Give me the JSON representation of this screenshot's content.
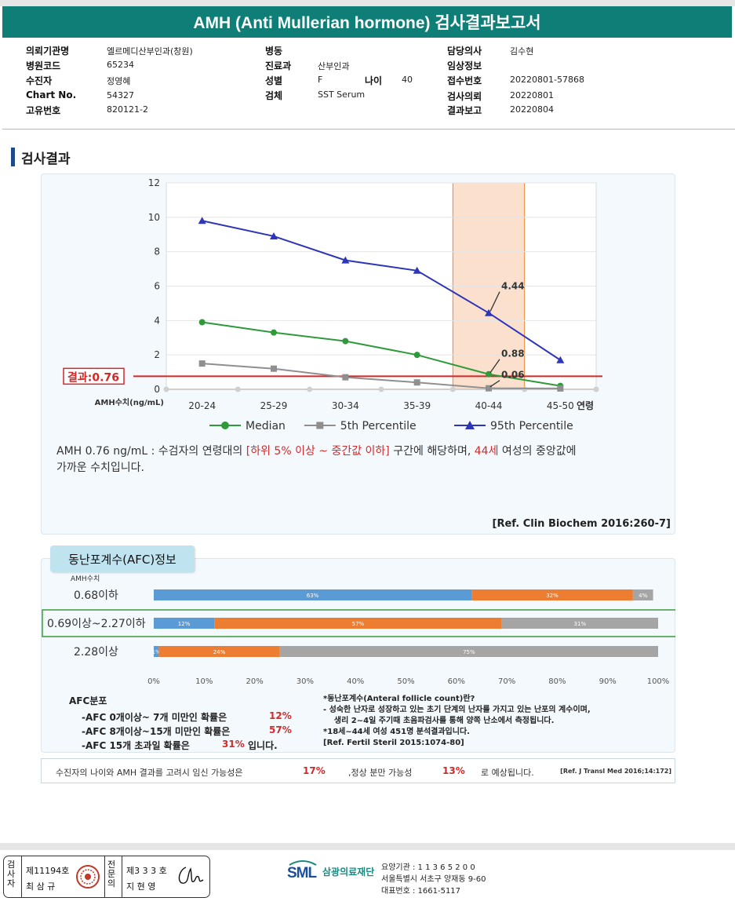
{
  "report": {
    "title": "AMH (Anti Mullerian hormone) 검사결과보고서"
  },
  "patient_info": {
    "col1": [
      {
        "label": "의뢰기관명",
        "value": "엘르메디산부인과(창원)"
      },
      {
        "label": "병원코드",
        "value": "65234"
      },
      {
        "label": "수진자",
        "value": "정영혜"
      },
      {
        "label": "Chart No.",
        "value": "54327"
      },
      {
        "label": "고유번호",
        "value": "820121-2"
      }
    ],
    "col2": [
      {
        "label": "병동",
        "value": ""
      },
      {
        "label": "진료과",
        "value": "산부인과"
      },
      {
        "label": "성별",
        "value": "F"
      },
      {
        "label": "검체",
        "value": "SST Serum"
      }
    ],
    "age_label": "나이",
    "age_value": "40",
    "col3": [
      {
        "label": "담당의사",
        "value": "김수현"
      },
      {
        "label": "임상정보",
        "value": ""
      },
      {
        "label": "접수번호",
        "value": "20220801-57868"
      },
      {
        "label": "검사의뢰",
        "value": "20220801"
      },
      {
        "label": "결과보고",
        "value": "20220804"
      }
    ]
  },
  "section_title": "검사결과",
  "chart_data": {
    "type": "line",
    "categories": [
      "20-24",
      "25-29",
      "30-34",
      "35-39",
      "40-44",
      "45-50"
    ],
    "x_axis_suffix": "연령",
    "y_axis_caption": "AMH수치(ng/mL)",
    "ylim": [
      0,
      12
    ],
    "yticks": [
      0,
      2,
      4,
      6,
      8,
      10,
      12
    ],
    "series": [
      {
        "name": "Median",
        "color": "#2e9a3a",
        "marker": "circle",
        "values": [
          3.9,
          3.3,
          2.8,
          2.0,
          0.88,
          0.2
        ]
      },
      {
        "name": "5th Percentile",
        "color": "#8f8f8f",
        "marker": "square",
        "values": [
          1.5,
          1.2,
          0.7,
          0.4,
          0.06,
          0.05
        ]
      },
      {
        "name": "95th Percentile",
        "color": "#2f35b8",
        "marker": "triangle",
        "values": [
          9.8,
          8.9,
          7.5,
          6.9,
          4.44,
          1.7
        ]
      }
    ],
    "highlight_category": "40-44",
    "highlight_color": "#f4b183",
    "result_line": {
      "value": 0.76,
      "label": "결과:0.76",
      "color": "#d62728"
    },
    "annotations": [
      {
        "text": "4.44",
        "category": "40-44",
        "value": 4.44
      },
      {
        "text": "0.88",
        "category": "40-44",
        "value": 0.88
      },
      {
        "text": "0.06",
        "category": "40-44",
        "value": 0.06
      }
    ],
    "grid": "horizontal",
    "legend_position": "bottom"
  },
  "interpretation": {
    "p1": "AMH  0.76 ng/mL : 수검자의 연령대의 ",
    "p2": "[하위 5% 이상 ~ 중간값 이하]",
    "p3": "  구간에 해당하며, ",
    "p4": "44세",
    "p5": " 여성의 중앙값에",
    "p6": "가까운 수치입니다."
  },
  "ref1": "[Ref. Clin Biochem 2016:260-7]",
  "afc": {
    "title": "동난포계수(AFC)정보",
    "caption": "AMH수치",
    "rows": [
      {
        "label": "0.68이하",
        "segments": [
          63,
          32,
          4
        ],
        "labels": [
          "63%",
          "32%",
          "4%"
        ],
        "highlight": false
      },
      {
        "label": "0.69이상~2.27이하",
        "segments": [
          12,
          57,
          31
        ],
        "labels": [
          "12%",
          "57%",
          "31%"
        ],
        "highlight": true
      },
      {
        "label": "2.28이상",
        "segments": [
          1,
          24,
          75
        ],
        "labels": [
          "1%",
          "24%",
          "75%"
        ],
        "highlight": false
      }
    ],
    "segment_colors": [
      "#5b9bd5",
      "#ed7d31",
      "#a5a5a5"
    ],
    "axis_ticks": [
      "0%",
      "10%",
      "20%",
      "30%",
      "40%",
      "50%",
      "60%",
      "70%",
      "80%",
      "90%",
      "100%"
    ],
    "info_title": "AFC분포",
    "info_lines": [
      {
        "text": "-AFC  0개이상~ 7개 미만인 확률은",
        "pct": "12%",
        "tail": ""
      },
      {
        "text": "-AFC  8개이상~15개 미만인 확률은",
        "pct": "57%",
        "tail": ""
      },
      {
        "text": "-AFC  15개 초과일 확률은",
        "pct": "31%",
        "tail": "입니다."
      }
    ],
    "notes": [
      "*동난포계수(Anteral follicle count)란?",
      "-  성숙한 난자로 성장하고 있는 초기 단계의 난자를 가지고 있는 난포의 계수이며,",
      "    생리 2~4일 주기때 초음파검사를 통해 양쪽 난소에서 측정됩니다.",
      "*18세~44세 여성 451명 분석결과입니다.",
      "[Ref. Fertil Steril 2015:1074-80]"
    ]
  },
  "prediction": {
    "t1": "수진자의  나이와 AMH 결과를 고려시 임신 가능성은",
    "v1": "17%",
    "t2": ",정상 분만 가능성",
    "v2": "13%",
    "t3": "로 예상됩니다.",
    "ref": "[Ref. J Transl Med 2016;14:172]"
  },
  "signatures": {
    "tester_label": "검사자",
    "tester_no": "제11194호",
    "tester_name": "최 삼 규",
    "doctor_label": "전문의",
    "doctor_no": "제3 3 3 호",
    "doctor_name": "지 현 영"
  },
  "institution": {
    "logo": "SML",
    "name": "삼광의료재단",
    "code_line": "요양기관 : 1 1 3 6 5 2 0 0",
    "address": "서울특별시 서초구 양재동 9-60",
    "phone": "대표번호 : 1661-5117"
  }
}
